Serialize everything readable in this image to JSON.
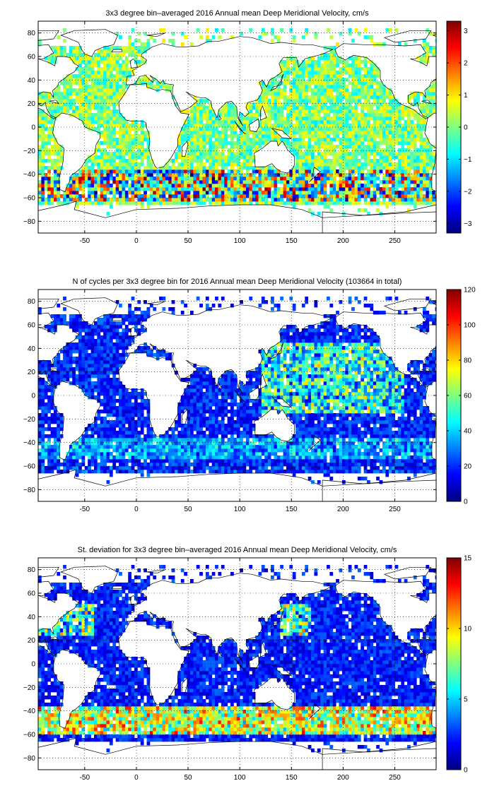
{
  "chart_data": [
    {
      "type": "heatmap",
      "title": "3x3 degree bin–averaged 2016 Annual mean Deep Meridional Velocity, cm/s",
      "xlabel": "",
      "ylabel": "",
      "xlim": [
        -95,
        290
      ],
      "ylim": [
        -90,
        90
      ],
      "xticks": [
        "-50",
        "0",
        "50",
        "100",
        "150",
        "200",
        "250"
      ],
      "yticks": [
        "80",
        "60",
        "40",
        "20",
        "0",
        "−20",
        "−40",
        "−60",
        "−80"
      ],
      "grid": true,
      "colorbar": {
        "range": [
          -3.3,
          3.3
        ],
        "ticks": [
          "3",
          "2",
          "1",
          "0",
          "−1",
          "−2",
          "−3"
        ],
        "tick_values": [
          3,
          2,
          1,
          0,
          -1,
          -2,
          -3
        ],
        "colormap": "jet"
      },
      "bin_size_deg": 3,
      "field": "velocity"
    },
    {
      "type": "heatmap",
      "title": "N of cycles per 3x3 degree bin for 2016 Annual mean Deep Meridional Velocity (103664 in total)",
      "xlabel": "",
      "ylabel": "",
      "xlim": [
        -95,
        290
      ],
      "ylim": [
        -90,
        90
      ],
      "xticks": [
        "-50",
        "0",
        "50",
        "100",
        "150",
        "200",
        "250"
      ],
      "yticks": [
        "80",
        "60",
        "40",
        "20",
        "0",
        "−20",
        "−40",
        "−60",
        "−80"
      ],
      "grid": true,
      "colorbar": {
        "range": [
          0,
          120
        ],
        "ticks": [
          "120",
          "100",
          "80",
          "60",
          "40",
          "20",
          "0"
        ],
        "tick_values": [
          120,
          100,
          80,
          60,
          40,
          20,
          0
        ],
        "colormap": "jet"
      },
      "bin_size_deg": 3,
      "total_cycles": 103664,
      "field": "count"
    },
    {
      "type": "heatmap",
      "title": "St. deviation for 3x3 degree bin–averaged 2016 Annual mean Deep Meridional Velocity, cm/s",
      "xlabel": "",
      "ylabel": "",
      "xlim": [
        -95,
        290
      ],
      "ylim": [
        -90,
        90
      ],
      "xticks": [
        "-50",
        "0",
        "50",
        "100",
        "150",
        "200",
        "250"
      ],
      "yticks": [
        "80",
        "60",
        "40",
        "20",
        "0",
        "−20",
        "−40",
        "−60",
        "−80"
      ],
      "grid": true,
      "colorbar": {
        "range": [
          0,
          15
        ],
        "ticks": [
          "15",
          "10",
          "5",
          "0"
        ],
        "tick_values": [
          15,
          10,
          5,
          0
        ],
        "colormap": "jet"
      },
      "bin_size_deg": 3,
      "field": "stddev"
    }
  ]
}
